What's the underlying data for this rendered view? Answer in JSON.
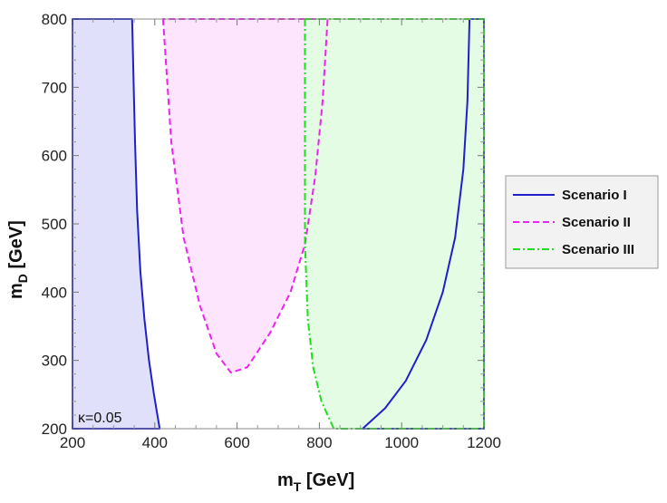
{
  "chart_data": {
    "type": "area",
    "xlabel_main": "m",
    "xlabel_sub": "T",
    "xlabel_unit": " [GeV]",
    "ylabel_main": "m",
    "ylabel_sub": "D",
    "ylabel_unit": " [GeV]",
    "xlim": [
      200,
      1200
    ],
    "ylim": [
      200,
      800
    ],
    "xticks": [
      200,
      400,
      600,
      800,
      1000,
      1200
    ],
    "yticks": [
      200,
      300,
      400,
      500,
      600,
      700,
      800
    ],
    "xtick_labels": [
      "200",
      "400",
      "600",
      "800",
      "1000",
      "1200"
    ],
    "ytick_labels": [
      "200",
      "300",
      "400",
      "500",
      "600",
      "700",
      "800"
    ],
    "annotation": "κ=0.05",
    "legend": {
      "placement": "right",
      "entries": [
        {
          "label": "Scenario I",
          "color": "#1f1fcc",
          "dash": "solid"
        },
        {
          "label": "Scenario II",
          "color": "#ee22ee",
          "dash": "dashed"
        },
        {
          "label": "Scenario III",
          "color": "#22dd22",
          "dash": "dashdot"
        }
      ]
    },
    "regions": [
      {
        "series": "Scenario I",
        "part": "left",
        "color": "#1f1fcc",
        "fill": "#e0e0fa",
        "dash": "solid",
        "points": [
          [
            200,
            200
          ],
          [
            200,
            800
          ],
          [
            345,
            800
          ],
          [
            348,
            720
          ],
          [
            352,
            620
          ],
          [
            357,
            520
          ],
          [
            365,
            430
          ],
          [
            375,
            360
          ],
          [
            386,
            300
          ],
          [
            398,
            250
          ],
          [
            412,
            200
          ]
        ]
      },
      {
        "series": "Scenario I",
        "part": "right",
        "color": "#1f1fcc",
        "fill": "none",
        "dash": "solid",
        "points": [
          [
            905,
            200
          ],
          [
            960,
            230
          ],
          [
            1010,
            270
          ],
          [
            1060,
            330
          ],
          [
            1100,
            400
          ],
          [
            1130,
            480
          ],
          [
            1150,
            580
          ],
          [
            1160,
            680
          ],
          [
            1165,
            800
          ],
          [
            1200,
            800
          ],
          [
            1200,
            200
          ]
        ]
      },
      {
        "series": "Scenario II",
        "part": "main",
        "color": "#ee22ee",
        "fill": "#fde6fd",
        "dash": "dashed",
        "points": [
          [
            420,
            800
          ],
          [
            440,
            620
          ],
          [
            470,
            480
          ],
          [
            510,
            380
          ],
          [
            550,
            310
          ],
          [
            585,
            282
          ],
          [
            625,
            290
          ],
          [
            680,
            340
          ],
          [
            730,
            400
          ],
          [
            765,
            470
          ],
          [
            790,
            570
          ],
          [
            808,
            680
          ],
          [
            820,
            800
          ]
        ]
      },
      {
        "series": "Scenario III",
        "part": "main",
        "color": "#22dd22",
        "fill": "#e4fbe4",
        "dash": "dashdot",
        "points": [
          [
            765,
            800
          ],
          [
            765,
            470
          ],
          [
            772,
            360
          ],
          [
            785,
            290
          ],
          [
            805,
            240
          ],
          [
            835,
            200
          ],
          [
            1200,
            200
          ],
          [
            1200,
            800
          ]
        ]
      }
    ]
  }
}
